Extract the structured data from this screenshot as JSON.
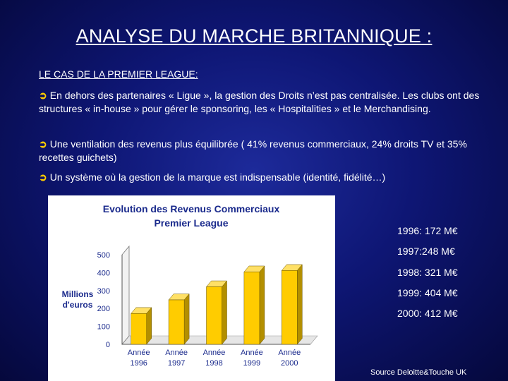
{
  "title": "ANALYSE DU MARCHE BRITANNIQUE :",
  "subtitle": "LE CAS DE LA PREMIER LEAGUE:",
  "bullets": [
    "En dehors des partenaires « Ligue », la gestion des Droits n’est pas centralisée. Les clubs ont des structures « in-house » pour gérer le sponsoring, les « Hospitalities » et le Merchandising.",
    "Une ventilation des revenus plus équilibrée ( 41% revenus commerciaux, 24% droits TV et 35% recettes guichets)",
    "Un système où la gestion de la marque est indispensable (identité, fidélité…)"
  ],
  "bullet_icon": "yellow-arrow-icon",
  "revenue_list": [
    "1996: 172 M€",
    "1997:248 M€",
    "1998: 321 M€",
    "1999: 404 M€",
    "2000: 412 M€"
  ],
  "source": "Source Deloitte&Touche UK",
  "chart_data": {
    "type": "bar",
    "title_lines": [
      "Evolution des Revenus Commerciaux",
      "Premier League"
    ],
    "ylabel_lines": [
      "Millions",
      "d'euros"
    ],
    "categories": [
      [
        "Année",
        "1996"
      ],
      [
        "Année",
        "1997"
      ],
      [
        "Année",
        "1998"
      ],
      [
        "Année",
        "1999"
      ],
      [
        "Année",
        "2000"
      ]
    ],
    "values": [
      172,
      248,
      321,
      404,
      412
    ],
    "ylim": [
      0,
      500
    ],
    "yticks": [
      "0",
      "100",
      "200",
      "300",
      "400",
      "500"
    ],
    "grid": false,
    "bar_color": "#ffcc00",
    "bar_3d": true
  }
}
